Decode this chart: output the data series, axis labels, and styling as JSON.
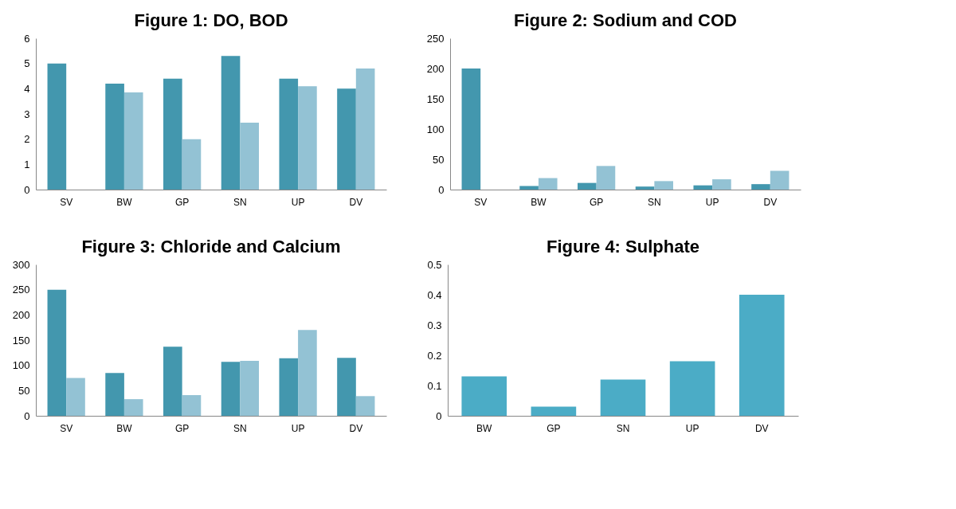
{
  "chart_data": [
    {
      "type": "bar",
      "title": "Figure 1: DO, BOD",
      "categories": [
        "SV",
        "BW",
        "GP",
        "SN",
        "UP",
        "DV"
      ],
      "ylim": [
        0,
        6
      ],
      "yticks": [
        0,
        1,
        2,
        3,
        4,
        5,
        6
      ],
      "grid": false,
      "legend": false,
      "series": [
        {
          "color": "#4397ae",
          "values": [
            5.0,
            4.2,
            4.4,
            5.3,
            4.4,
            4.0
          ]
        },
        {
          "color": "#93c2d4",
          "values": [
            null,
            3.85,
            2.0,
            2.65,
            4.1,
            4.8
          ]
        }
      ]
    },
    {
      "type": "bar",
      "title": "Figure 2: Sodium and COD",
      "categories": [
        "SV",
        "BW",
        "GP",
        "SN",
        "UP",
        "DV"
      ],
      "ylim": [
        0,
        250
      ],
      "yticks": [
        0,
        50,
        100,
        150,
        200,
        250
      ],
      "grid": false,
      "legend": false,
      "series": [
        {
          "color": "#4397ae",
          "values": [
            200,
            6,
            11,
            5,
            7,
            9
          ]
        },
        {
          "color": "#93c2d4",
          "values": [
            null,
            19,
            39,
            14,
            17,
            31
          ]
        }
      ]
    },
    {
      "type": "bar",
      "title": "Figure 3: Chloride and Calcium",
      "categories": [
        "SV",
        "BW",
        "GP",
        "SN",
        "UP",
        "DV"
      ],
      "ylim": [
        0,
        300
      ],
      "yticks": [
        0,
        50,
        100,
        150,
        200,
        250,
        300
      ],
      "grid": false,
      "legend": false,
      "series": [
        {
          "color": "#4397ae",
          "values": [
            250,
            85,
            137,
            107,
            114,
            115
          ]
        },
        {
          "color": "#93c2d4",
          "values": [
            75,
            33,
            41,
            109,
            170,
            39
          ]
        }
      ]
    },
    {
      "type": "bar",
      "title": "Figure 4: Sulphate",
      "categories": [
        "BW",
        "GP",
        "SN",
        "UP",
        "DV"
      ],
      "ylim": [
        0,
        0.5
      ],
      "yticks": [
        0,
        0.1,
        0.2,
        0.3,
        0.4,
        0.5
      ],
      "grid": false,
      "legend": false,
      "series": [
        {
          "color": "#4bacc6",
          "values": [
            0.13,
            0.03,
            0.12,
            0.18,
            0.4
          ]
        }
      ]
    }
  ]
}
